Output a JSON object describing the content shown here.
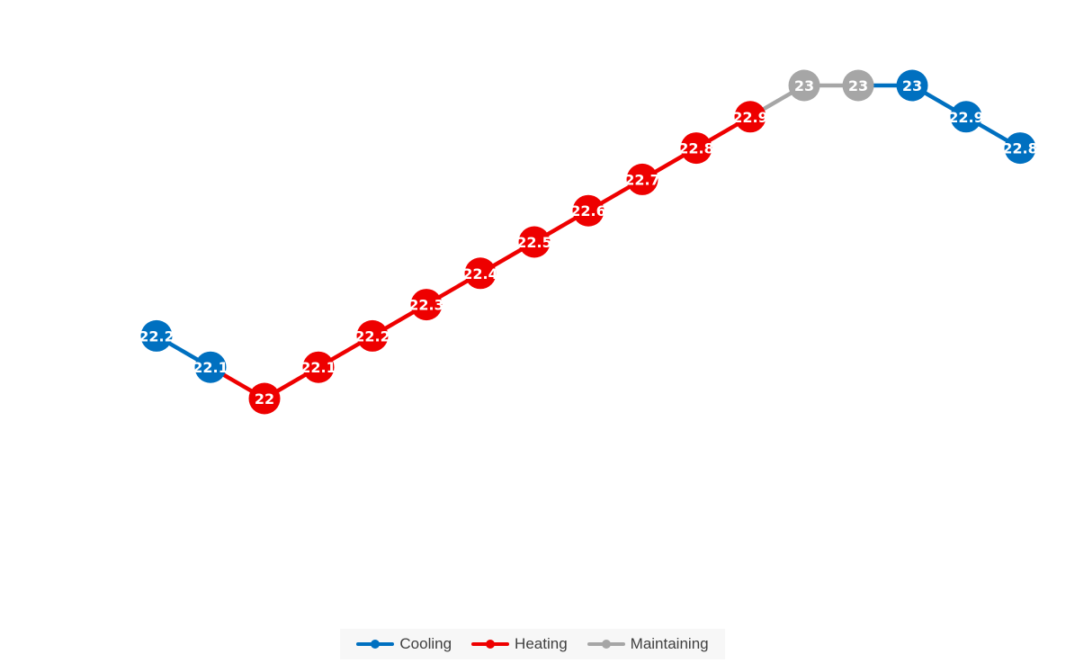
{
  "chart_data": {
    "type": "line",
    "title": "",
    "xlabel": "",
    "ylabel": "",
    "ylim": [
      21.0,
      23.2
    ],
    "grid": false,
    "legend_position": "bottom",
    "points": [
      {
        "value": 22.2,
        "series": "Cooling"
      },
      {
        "value": 22.1,
        "series": "Cooling"
      },
      {
        "value": 22.0,
        "series": "Heating"
      },
      {
        "value": 22.1,
        "series": "Heating"
      },
      {
        "value": 22.2,
        "series": "Heating"
      },
      {
        "value": 22.3,
        "series": "Heating"
      },
      {
        "value": 22.4,
        "series": "Heating"
      },
      {
        "value": 22.5,
        "series": "Heating"
      },
      {
        "value": 22.6,
        "series": "Heating"
      },
      {
        "value": 22.7,
        "series": "Heating"
      },
      {
        "value": 22.8,
        "series": "Heating"
      },
      {
        "value": 22.9,
        "series": "Heating"
      },
      {
        "value": 23.0,
        "series": "Maintaining"
      },
      {
        "value": 23.0,
        "series": "Maintaining"
      },
      {
        "value": 23.0,
        "series": "Cooling"
      },
      {
        "value": 22.9,
        "series": "Cooling"
      },
      {
        "value": 22.8,
        "series": "Cooling"
      }
    ],
    "series": [
      {
        "name": "Cooling",
        "color": "#0070c0"
      },
      {
        "name": "Heating",
        "color": "#ee0000"
      },
      {
        "name": "Maintaining",
        "color": "#a6a6a6"
      }
    ]
  },
  "legend": {
    "cooling_label": "Cooling",
    "heating_label": "Heating",
    "maintaining_label": "Maintaining"
  }
}
